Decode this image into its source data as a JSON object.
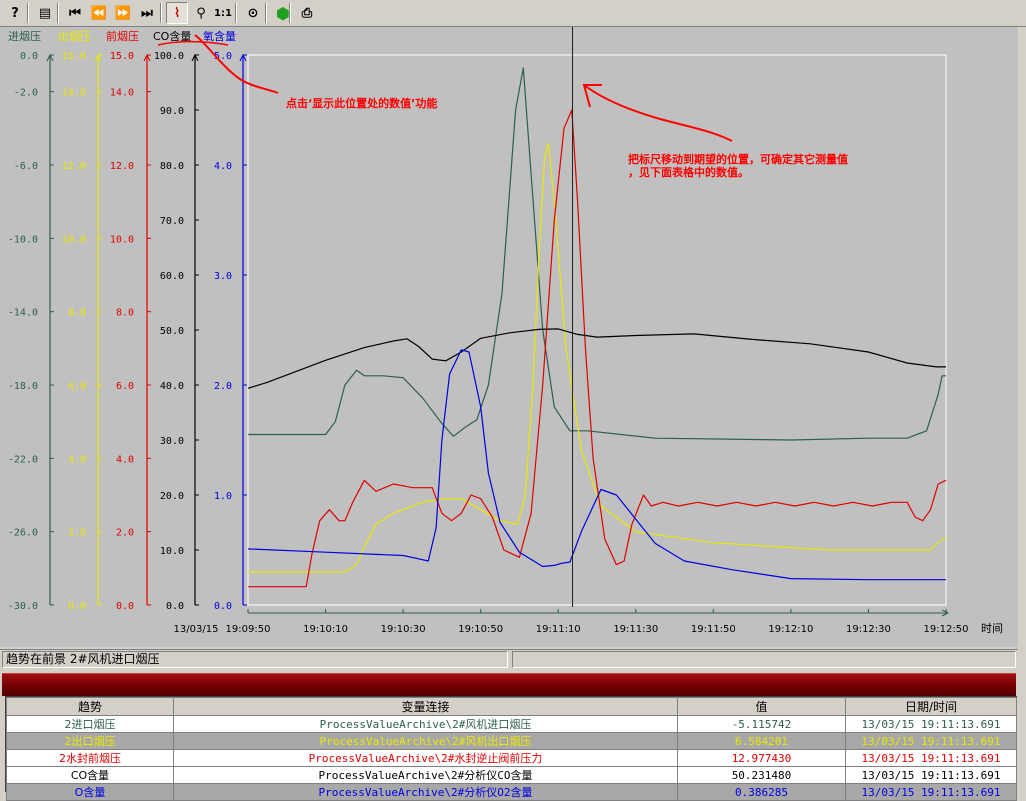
{
  "toolbar": {
    "buttons": [
      {
        "name": "help-icon",
        "glyph": "?"
      },
      {
        "name": "table-icon",
        "glyph": "▤"
      },
      {
        "name": "first-icon",
        "glyph": "⏮"
      },
      {
        "name": "rewind-icon",
        "glyph": "⏪"
      },
      {
        "name": "fast-forward-icon",
        "glyph": "⏩"
      },
      {
        "name": "last-icon",
        "glyph": "⏭"
      },
      {
        "name": "ruler-icon",
        "glyph": "⌇"
      },
      {
        "name": "zoom-icon",
        "glyph": "⚲"
      },
      {
        "name": "original-size-icon",
        "glyph": "1:1"
      },
      {
        "name": "select-trend-icon",
        "glyph": "⊙"
      },
      {
        "name": "start-stop-icon",
        "glyph": "⬢"
      },
      {
        "name": "print-icon",
        "glyph": "⎙"
      }
    ]
  },
  "chart_data": {
    "type": "line",
    "x_unit_label": "时间",
    "date_label": "13/03/15",
    "x_ticks": [
      "19:09:50",
      "19:10:10",
      "19:10:30",
      "19:10:50",
      "19:11:10",
      "19:11:30",
      "19:11:50",
      "19:12:10",
      "19:12:30",
      "19:12:50"
    ],
    "xlim_seconds": [
      0,
      180
    ],
    "ruler_time": "19:11:13.691",
    "axes": [
      {
        "label": "进烟压",
        "color": "#2e5e4e",
        "ylim": [
          -30,
          0
        ],
        "ticks": [
          "0.0",
          "-2.0",
          "-6.0",
          "-10.0",
          "-14.0",
          "-18.0",
          "-22.0",
          "-26.0",
          "-30.0"
        ],
        "tick_values": [
          0,
          -2,
          -6,
          -10,
          -14,
          -18,
          -22,
          -26,
          -30
        ]
      },
      {
        "label": "出烟压",
        "color": "#e8e800",
        "ylim": [
          0,
          15
        ],
        "ticks": [
          "15.0",
          "14.0",
          "12.0",
          "10.0",
          "8.0",
          "6.0",
          "4.0",
          "2.0",
          "0.0"
        ],
        "tick_values": [
          15,
          14,
          12,
          10,
          8,
          6,
          4,
          2,
          0
        ]
      },
      {
        "label": "前烟压",
        "color": "#e00000",
        "ylim": [
          0,
          15
        ],
        "ticks": [
          "15.0",
          "14.0",
          "12.0",
          "10.0",
          "8.0",
          "6.0",
          "4.0",
          "2.0",
          "0.0"
        ],
        "tick_values": [
          15,
          14,
          12,
          10,
          8,
          6,
          4,
          2,
          0
        ]
      },
      {
        "label": "CO含量",
        "color": "#000000",
        "ylim": [
          0,
          100
        ],
        "ticks": [
          "100.0",
          "90.0",
          "80.0",
          "70.0",
          "60.0",
          "50.0",
          "40.0",
          "30.0",
          "20.0",
          "10.0",
          "0.0"
        ],
        "tick_values": [
          100,
          90,
          80,
          70,
          60,
          50,
          40,
          30,
          20,
          10,
          0
        ]
      },
      {
        "label": "氧含量",
        "color": "#0000e0",
        "ylim": [
          0,
          5
        ],
        "ticks": [
          "5.0",
          "4.0",
          "3.0",
          "2.0",
          "1.0",
          "0.0"
        ],
        "tick_values": [
          5,
          4,
          3,
          2,
          1,
          0
        ]
      }
    ],
    "series": [
      {
        "name": "进烟压",
        "axis": 0,
        "color": "#2e5e4e",
        "points": [
          [
            0,
            -20.7
          ],
          [
            40,
            -20.7
          ],
          [
            45,
            -20.0
          ],
          [
            50,
            -18.0
          ],
          [
            56,
            -17.2
          ],
          [
            60,
            -17.5
          ],
          [
            70,
            -17.5
          ],
          [
            80,
            -17.6
          ],
          [
            90,
            -18.7
          ],
          [
            100,
            -20.1
          ],
          [
            106,
            -20.8
          ],
          [
            112,
            -20.3
          ],
          [
            118,
            -19.9
          ],
          [
            124,
            -18.0
          ],
          [
            131,
            -13.0
          ],
          [
            138,
            -3.0
          ],
          [
            142,
            -0.7
          ],
          [
            146,
            -6.5
          ],
          [
            152,
            -15.0
          ],
          [
            158,
            -19.2
          ],
          [
            166,
            -20.5
          ],
          [
            175,
            -20.5
          ],
          [
            210,
            -20.9
          ],
          [
            280,
            -21.0
          ],
          [
            320,
            -20.9
          ],
          [
            340,
            -20.9
          ],
          [
            350,
            -20.5
          ],
          [
            356,
            -18.5
          ],
          [
            358,
            -17.5
          ],
          [
            360,
            -17.5
          ]
        ]
      },
      {
        "name": "出烟压",
        "axis": 1,
        "color": "#e8e800",
        "points": [
          [
            0,
            0.9
          ],
          [
            50,
            0.9
          ],
          [
            56,
            1.1
          ],
          [
            60,
            1.6
          ],
          [
            66,
            2.2
          ],
          [
            75,
            2.5
          ],
          [
            90,
            2.8
          ],
          [
            100,
            2.9
          ],
          [
            110,
            2.9
          ],
          [
            120,
            2.6
          ],
          [
            130,
            2.3
          ],
          [
            139,
            2.2
          ],
          [
            143,
            3.0
          ],
          [
            147,
            6.0
          ],
          [
            150,
            9.5
          ],
          [
            153,
            12.2
          ],
          [
            155,
            12.6
          ],
          [
            158,
            11.0
          ],
          [
            164,
            7.0
          ],
          [
            172,
            4.2
          ],
          [
            182,
            2.7
          ],
          [
            200,
            2.0
          ],
          [
            240,
            1.7
          ],
          [
            300,
            1.5
          ],
          [
            340,
            1.5
          ],
          [
            352,
            1.5
          ],
          [
            358,
            1.8
          ],
          [
            360,
            1.8
          ]
        ]
      },
      {
        "name": "前烟压",
        "axis": 2,
        "color": "#e00000",
        "points": [
          [
            0,
            0.5
          ],
          [
            30,
            0.5
          ],
          [
            33,
            1.4
          ],
          [
            37,
            2.3
          ],
          [
            42,
            2.6
          ],
          [
            47,
            2.3
          ],
          [
            50,
            2.3
          ],
          [
            54,
            2.8
          ],
          [
            60,
            3.4
          ],
          [
            66,
            3.1
          ],
          [
            75,
            3.3
          ],
          [
            85,
            3.2
          ],
          [
            95,
            3.2
          ],
          [
            100,
            2.5
          ],
          [
            105,
            2.3
          ],
          [
            110,
            2.5
          ],
          [
            115,
            3.0
          ],
          [
            120,
            2.9
          ],
          [
            126,
            2.4
          ],
          [
            132,
            1.5
          ],
          [
            140,
            1.3
          ],
          [
            146,
            2.5
          ],
          [
            152,
            6.0
          ],
          [
            158,
            10.5
          ],
          [
            163,
            13.0
          ],
          [
            167,
            13.5
          ],
          [
            170,
            11.0
          ],
          [
            174,
            7.0
          ],
          [
            178,
            4.0
          ],
          [
            184,
            1.8
          ],
          [
            190,
            1.1
          ],
          [
            194,
            1.2
          ],
          [
            198,
            2.2
          ],
          [
            204,
            3.0
          ],
          [
            208,
            2.7
          ],
          [
            214,
            2.8
          ],
          [
            222,
            2.7
          ],
          [
            232,
            2.8
          ],
          [
            242,
            2.7
          ],
          [
            252,
            2.8
          ],
          [
            262,
            2.7
          ],
          [
            272,
            2.8
          ],
          [
            282,
            2.7
          ],
          [
            292,
            2.8
          ],
          [
            302,
            2.7
          ],
          [
            312,
            2.8
          ],
          [
            322,
            2.7
          ],
          [
            332,
            2.8
          ],
          [
            340,
            2.8
          ],
          [
            344,
            2.4
          ],
          [
            348,
            2.3
          ],
          [
            352,
            2.6
          ],
          [
            356,
            3.3
          ],
          [
            360,
            3.4
          ]
        ]
      },
      {
        "name": "CO含量",
        "axis": 3,
        "color": "#000000",
        "points": [
          [
            0,
            39.4
          ],
          [
            10,
            40.5
          ],
          [
            40,
            44.5
          ],
          [
            60,
            46.8
          ],
          [
            75,
            48.0
          ],
          [
            82,
            48.4
          ],
          [
            88,
            47.0
          ],
          [
            95,
            44.7
          ],
          [
            102,
            44.4
          ],
          [
            110,
            46.0
          ],
          [
            120,
            48.5
          ],
          [
            135,
            49.5
          ],
          [
            150,
            50.1
          ],
          [
            160,
            50.2
          ],
          [
            170,
            49.2
          ],
          [
            180,
            48.7
          ],
          [
            200,
            49.0
          ],
          [
            230,
            49.3
          ],
          [
            260,
            48.3
          ],
          [
            290,
            47.5
          ],
          [
            320,
            46.0
          ],
          [
            340,
            44.0
          ],
          [
            355,
            43.3
          ],
          [
            360,
            43.3
          ]
        ]
      },
      {
        "name": "氧含量",
        "axis": 4,
        "color": "#0000e0",
        "points": [
          [
            0,
            0.51
          ],
          [
            40,
            0.48
          ],
          [
            80,
            0.45
          ],
          [
            88,
            0.42
          ],
          [
            93,
            0.4
          ],
          [
            97,
            0.7
          ],
          [
            100,
            1.5
          ],
          [
            104,
            2.1
          ],
          [
            110,
            2.32
          ],
          [
            114,
            2.3
          ],
          [
            120,
            1.8
          ],
          [
            124,
            1.2
          ],
          [
            130,
            0.75
          ],
          [
            140,
            0.48
          ],
          [
            152,
            0.35
          ],
          [
            158,
            0.36
          ],
          [
            162,
            0.38
          ],
          [
            166,
            0.39
          ],
          [
            172,
            0.67
          ],
          [
            182,
            1.05
          ],
          [
            190,
            1.0
          ],
          [
            200,
            0.78
          ],
          [
            210,
            0.56
          ],
          [
            225,
            0.4
          ],
          [
            250,
            0.32
          ],
          [
            280,
            0.24
          ],
          [
            320,
            0.23
          ],
          [
            360,
            0.23
          ]
        ]
      }
    ]
  },
  "annotations": {
    "click_hint": "点击‘显示此位置处的数值’功能",
    "ruler_hint_line1": "把标尺移动到期望的位置，可确定其它测量值",
    "ruler_hint_line2": "，见下面表格中的数值。"
  },
  "status": {
    "foreground": "趋势在前景 2#风机进口烟压",
    "pane2": ""
  },
  "table": {
    "headers": [
      "趋势",
      "变量连接",
      "值",
      "日期/时间"
    ],
    "rows": [
      {
        "trend": "2进口烟压",
        "link": "ProcessValueArchive\\2#风机进口烟压",
        "value": "-5.115742",
        "datetime": "13/03/15 19:11:13.691",
        "color": "#2e5e4e",
        "style": "norm"
      },
      {
        "trend": "2出口烟压",
        "link": "ProcessValueArchive\\2#风机出口烟压",
        "value": "6.584201",
        "datetime": "13/03/15 19:11:13.691",
        "color": "#e8e800",
        "style": "alt"
      },
      {
        "trend": "2水封前烟压",
        "link": "ProcessValueArchive\\2#水封逆止阀前压力",
        "value": "12.977430",
        "datetime": "13/03/15 19:11:13.691",
        "color": "#e00000",
        "style": "norm"
      },
      {
        "trend": "CO含量",
        "link": "ProcessValueArchive\\2#分析仪CO含量",
        "value": "50.231480",
        "datetime": "13/03/15 19:11:13.691",
        "color": "#000000",
        "style": "norm"
      },
      {
        "trend": "O含量",
        "link": "ProcessValueArchive\\2#分析仪O2含量",
        "value": "0.386285",
        "datetime": "13/03/15 19:11:13.691",
        "color": "#0000e0",
        "style": "alt"
      }
    ]
  }
}
